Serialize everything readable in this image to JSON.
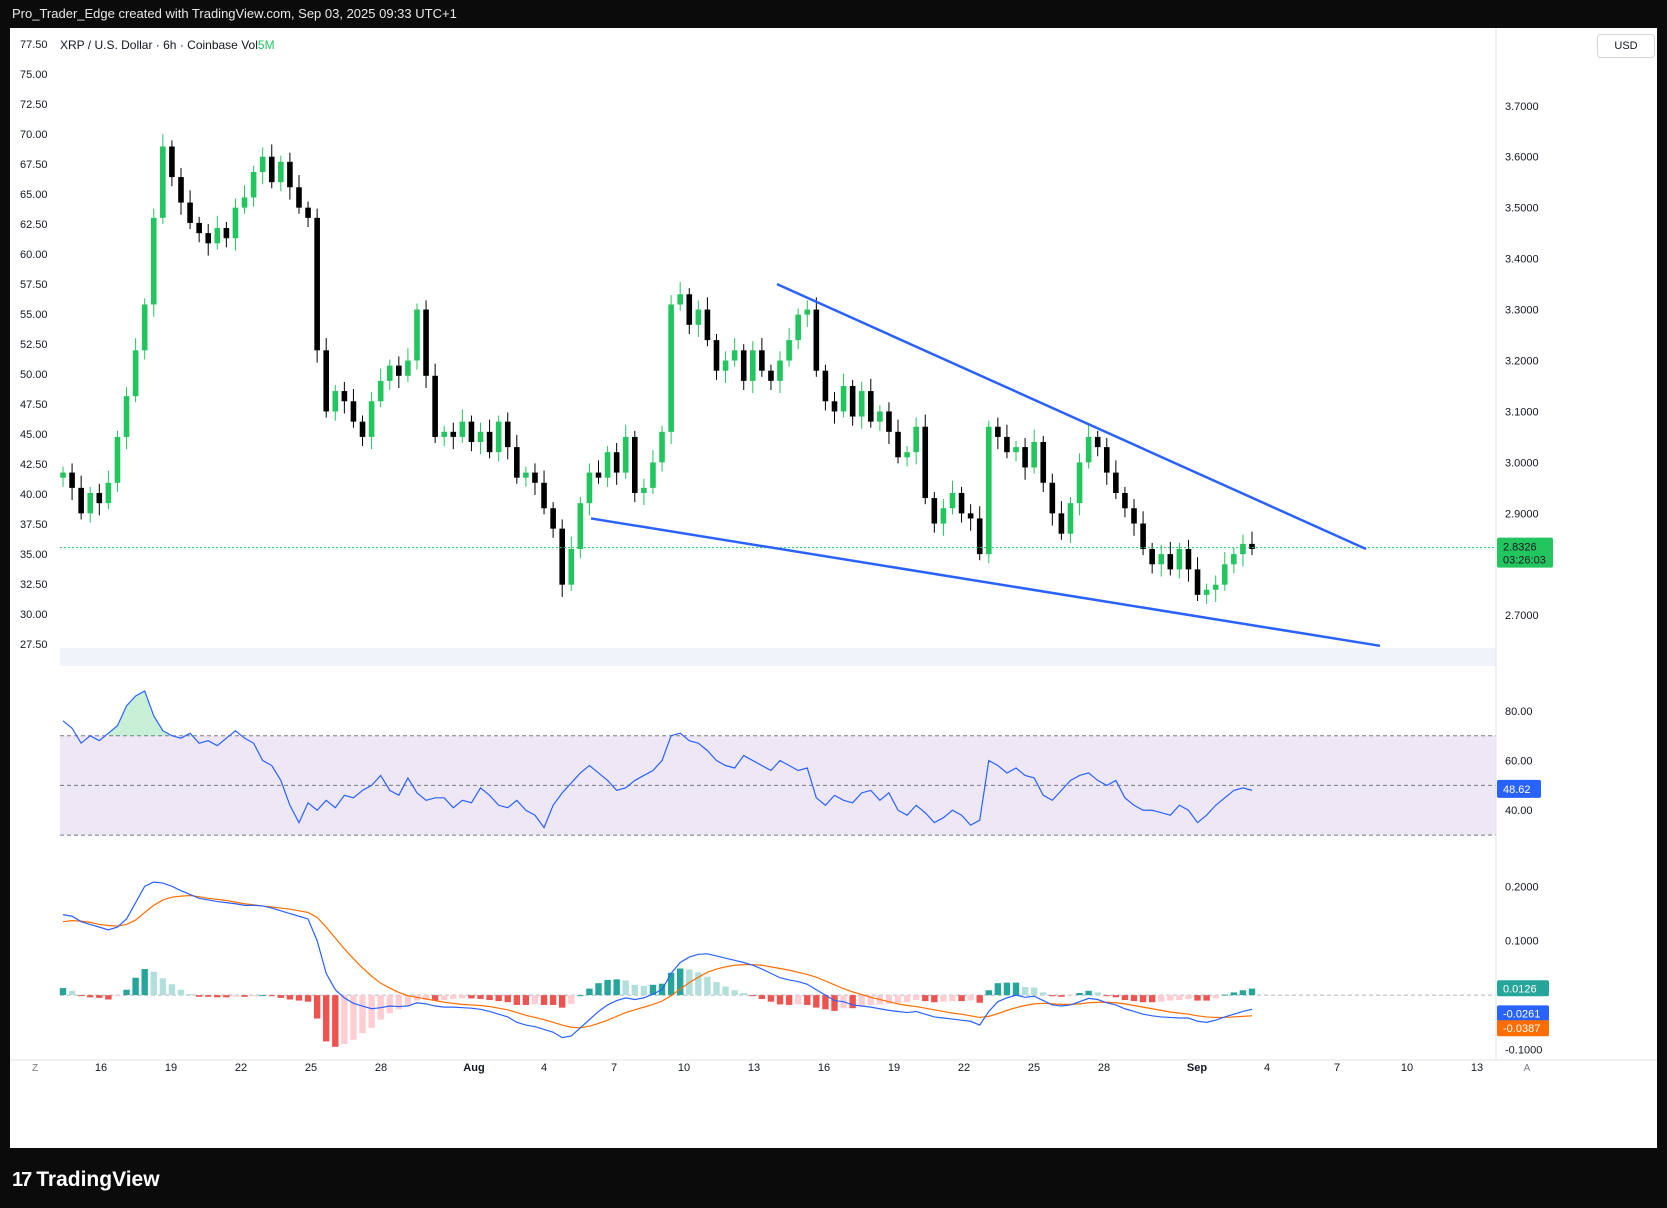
{
  "header": {
    "attribution": "Pro_Trader_Edge created with TradingView.com, Sep 03, 2025 09:33 UTC+1"
  },
  "legend": {
    "symbol": "XRP / U.S. Dollar · 6h · Coinbase",
    "vol_label": "Vol",
    "vol_value": "5M"
  },
  "currency_button": "USD",
  "footer": {
    "brand": "TradingView",
    "logo_glyph": "17"
  },
  "corner_labels": {
    "zoom": "Z",
    "auto": "A"
  },
  "colors": {
    "up": "#22c55e",
    "down": "#000000",
    "trendline": "#2962ff",
    "rsi": "#2962ff",
    "rsi_band": "#ede7f6",
    "macd": "#2962ff",
    "signal": "#ff6d00",
    "hist_pos": "#26a69a",
    "hist_neg": "#ef5350"
  },
  "chart_data": [
    {
      "type": "candlestick",
      "title": "XRP / U.S. Dollar · 6h · Coinbase",
      "right_axis_ticks": [
        "3.7000",
        "3.6000",
        "3.5000",
        "3.4000",
        "3.3000",
        "3.2000",
        "3.1000",
        "3.0000",
        "2.9000",
        "2.7000"
      ],
      "left_axis_ticks": [
        "77.50",
        "75.00",
        "72.50",
        "70.00",
        "67.50",
        "65.00",
        "62.50",
        "60.00",
        "57.50",
        "55.00",
        "52.50",
        "50.00",
        "47.50",
        "45.00",
        "42.50",
        "40.00",
        "37.50",
        "35.00",
        "32.50",
        "30.00",
        "27.50"
      ],
      "x_tick_labels": [
        "16",
        "19",
        "22",
        "25",
        "28",
        "Aug",
        "4",
        "7",
        "10",
        "13",
        "16",
        "19",
        "22",
        "25",
        "28",
        "Sep",
        "4",
        "7",
        "10",
        "13"
      ],
      "ylim": [
        2.62,
        3.78
      ],
      "closes": [
        2.98,
        2.95,
        2.9,
        2.94,
        2.92,
        2.96,
        3.05,
        3.13,
        3.22,
        3.31,
        3.48,
        3.62,
        3.56,
        3.51,
        3.47,
        3.45,
        3.43,
        3.46,
        3.44,
        3.5,
        3.52,
        3.57,
        3.6,
        3.55,
        3.59,
        3.54,
        3.5,
        3.48,
        3.22,
        3.1,
        3.14,
        3.12,
        3.08,
        3.05,
        3.12,
        3.16,
        3.19,
        3.17,
        3.2,
        3.3,
        3.17,
        3.05,
        3.06,
        3.05,
        3.08,
        3.04,
        3.06,
        3.02,
        3.08,
        3.03,
        2.97,
        2.98,
        2.96,
        2.91,
        2.87,
        2.76,
        2.83,
        2.92,
        2.98,
        2.97,
        3.02,
        2.98,
        3.05,
        2.94,
        2.95,
        3.0,
        3.06,
        3.31,
        3.33,
        3.27,
        3.3,
        3.24,
        3.18,
        3.2,
        3.22,
        3.16,
        3.22,
        3.18,
        3.16,
        3.2,
        3.24,
        3.29,
        3.3,
        3.18,
        3.12,
        3.1,
        3.15,
        3.09,
        3.14,
        3.08,
        3.1,
        3.06,
        3.01,
        3.02,
        3.07,
        2.93,
        2.88,
        2.91,
        2.94,
        2.9,
        2.89,
        2.82,
        3.07,
        3.05,
        3.02,
        3.03,
        2.99,
        3.04,
        2.96,
        2.9,
        2.86,
        2.92,
        3.0,
        3.05,
        3.03,
        2.98,
        2.94,
        2.91,
        2.88,
        2.83,
        2.8,
        2.82,
        2.79,
        2.83,
        2.79,
        2.74,
        2.75,
        2.76,
        2.8,
        2.82,
        2.84,
        2.83
      ],
      "current_price": "2.8326",
      "countdown": "03:26:03",
      "trendlines": [
        {
          "from": {
            "date": "Jul 14",
            "price": 3.35
          },
          "to": {
            "date": "Sep 9",
            "price": 2.83
          }
        },
        {
          "from": {
            "date": "Aug 5",
            "price": 2.89
          },
          "to": {
            "date": "Sep 10",
            "price": 2.64
          }
        }
      ]
    },
    {
      "type": "line",
      "title": "RSI",
      "ticks": [
        "80.00",
        "60.00",
        "40.00"
      ],
      "ylim": [
        24,
        90
      ],
      "band": [
        30,
        70
      ],
      "midline": 50,
      "current": "48.62",
      "values": [
        76,
        73,
        67,
        70,
        68,
        71,
        74,
        82,
        86,
        88,
        78,
        72,
        70,
        69,
        71,
        67,
        68,
        66,
        69,
        72,
        69,
        67,
        60,
        58,
        52,
        42,
        35,
        43,
        40,
        44,
        41,
        46,
        45,
        48,
        50,
        54,
        48,
        46,
        53,
        47,
        44,
        45,
        45,
        41,
        44,
        43,
        49,
        46,
        42,
        41,
        44,
        40,
        38,
        33,
        42,
        47,
        51,
        55,
        58,
        55,
        52,
        48,
        49,
        52,
        54,
        56,
        60,
        70,
        71,
        68,
        67,
        64,
        60,
        58,
        57,
        62,
        60,
        58,
        56,
        60,
        58,
        56,
        57,
        45,
        42,
        46,
        44,
        43,
        47,
        48,
        44,
        47,
        40,
        38,
        42,
        39,
        35,
        37,
        40,
        38,
        34,
        36,
        60,
        58,
        55,
        57,
        54,
        53,
        46,
        44,
        48,
        52,
        54,
        55,
        52,
        50,
        52,
        45,
        42,
        40,
        40,
        39,
        38,
        42,
        40,
        35,
        38,
        42,
        45,
        48,
        49,
        48
      ],
      "show_grid": false
    },
    {
      "type": "macd",
      "title": "MACD",
      "ticks": [
        "0.2000",
        "0.1000",
        "-0.1000"
      ],
      "ylim": [
        -0.11,
        0.23
      ],
      "current": {
        "histogram": "0.0126",
        "macd": "-0.0261",
        "signal": "-0.0387"
      },
      "macd_values": [
        0.148,
        0.145,
        0.135,
        0.13,
        0.125,
        0.12,
        0.125,
        0.14,
        0.17,
        0.2,
        0.208,
        0.206,
        0.2,
        0.192,
        0.185,
        0.178,
        0.175,
        0.172,
        0.17,
        0.168,
        0.165,
        0.165,
        0.164,
        0.16,
        0.155,
        0.15,
        0.145,
        0.14,
        0.1,
        0.04,
        0.01,
        -0.005,
        -0.015,
        -0.02,
        -0.025,
        -0.023,
        -0.02,
        -0.021,
        -0.02,
        -0.014,
        -0.016,
        -0.02,
        -0.022,
        -0.022,
        -0.023,
        -0.024,
        -0.026,
        -0.03,
        -0.035,
        -0.04,
        -0.05,
        -0.055,
        -0.058,
        -0.063,
        -0.068,
        -0.078,
        -0.075,
        -0.06,
        -0.045,
        -0.03,
        -0.018,
        -0.01,
        -0.005,
        -0.008,
        -0.005,
        0.002,
        0.01,
        0.04,
        0.06,
        0.07,
        0.075,
        0.076,
        0.072,
        0.068,
        0.064,
        0.06,
        0.055,
        0.048,
        0.04,
        0.032,
        0.028,
        0.025,
        0.02,
        0.01,
        0.0,
        -0.01,
        -0.012,
        -0.018,
        -0.02,
        -0.022,
        -0.025,
        -0.028,
        -0.03,
        -0.032,
        -0.03,
        -0.035,
        -0.04,
        -0.042,
        -0.044,
        -0.046,
        -0.048,
        -0.055,
        -0.03,
        -0.012,
        -0.005,
        0.0,
        -0.004,
        -0.002,
        -0.01,
        -0.018,
        -0.02,
        -0.018,
        -0.012,
        -0.006,
        -0.008,
        -0.014,
        -0.018,
        -0.025,
        -0.03,
        -0.035,
        -0.038,
        -0.04,
        -0.041,
        -0.042,
        -0.042,
        -0.048,
        -0.05,
        -0.046,
        -0.04,
        -0.035,
        -0.03,
        -0.026
      ],
      "signal_values": [
        0.135,
        0.137,
        0.136,
        0.134,
        0.13,
        0.128,
        0.127,
        0.13,
        0.138,
        0.152,
        0.165,
        0.175,
        0.18,
        0.182,
        0.183,
        0.181,
        0.178,
        0.176,
        0.174,
        0.171,
        0.168,
        0.166,
        0.164,
        0.162,
        0.16,
        0.158,
        0.155,
        0.152,
        0.143,
        0.125,
        0.105,
        0.085,
        0.067,
        0.05,
        0.035,
        0.022,
        0.013,
        0.005,
        -0.001,
        -0.004,
        -0.007,
        -0.01,
        -0.013,
        -0.015,
        -0.017,
        -0.018,
        -0.019,
        -0.021,
        -0.024,
        -0.027,
        -0.032,
        -0.037,
        -0.041,
        -0.045,
        -0.05,
        -0.055,
        -0.059,
        -0.06,
        -0.057,
        -0.052,
        -0.046,
        -0.039,
        -0.032,
        -0.027,
        -0.022,
        -0.017,
        -0.011,
        -0.001,
        0.011,
        0.023,
        0.033,
        0.042,
        0.048,
        0.052,
        0.055,
        0.056,
        0.056,
        0.055,
        0.052,
        0.049,
        0.046,
        0.042,
        0.038,
        0.033,
        0.026,
        0.019,
        0.012,
        0.006,
        0.001,
        -0.004,
        -0.008,
        -0.012,
        -0.016,
        -0.019,
        -0.021,
        -0.024,
        -0.027,
        -0.03,
        -0.033,
        -0.035,
        -0.038,
        -0.041,
        -0.039,
        -0.034,
        -0.028,
        -0.023,
        -0.019,
        -0.016,
        -0.015,
        -0.016,
        -0.017,
        -0.017,
        -0.016,
        -0.014,
        -0.013,
        -0.013,
        -0.014,
        -0.016,
        -0.019,
        -0.022,
        -0.025,
        -0.028,
        -0.031,
        -0.033,
        -0.035,
        -0.038,
        -0.04,
        -0.041,
        -0.041,
        -0.04,
        -0.039,
        -0.038
      ],
      "histogram_values": [
        0.013,
        0.008,
        -0.001,
        -0.004,
        -0.005,
        -0.008,
        -0.002,
        0.01,
        0.032,
        0.048,
        0.043,
        0.031,
        0.02,
        0.01,
        0.002,
        -0.003,
        -0.003,
        -0.004,
        -0.004,
        -0.003,
        -0.003,
        -0.001,
        0.0,
        -0.002,
        -0.005,
        -0.008,
        -0.01,
        -0.012,
        -0.043,
        -0.085,
        -0.095,
        -0.09,
        -0.082,
        -0.07,
        -0.06,
        -0.045,
        -0.033,
        -0.026,
        -0.019,
        -0.01,
        -0.009,
        -0.01,
        -0.009,
        -0.007,
        -0.006,
        -0.006,
        -0.007,
        -0.009,
        -0.011,
        -0.013,
        -0.018,
        -0.018,
        -0.017,
        -0.018,
        -0.018,
        -0.023,
        -0.016,
        0.0,
        0.012,
        0.022,
        0.028,
        0.029,
        0.027,
        0.019,
        0.017,
        0.019,
        0.021,
        0.041,
        0.049,
        0.047,
        0.042,
        0.034,
        0.024,
        0.016,
        0.009,
        0.004,
        -0.001,
        -0.007,
        -0.012,
        -0.017,
        -0.018,
        -0.017,
        -0.018,
        -0.023,
        -0.026,
        -0.029,
        -0.024,
        -0.024,
        -0.021,
        -0.018,
        -0.017,
        -0.016,
        -0.014,
        -0.013,
        -0.009,
        -0.011,
        -0.013,
        -0.012,
        -0.011,
        -0.011,
        -0.01,
        -0.014,
        0.009,
        0.022,
        0.023,
        0.023,
        0.015,
        0.014,
        0.005,
        -0.002,
        -0.003,
        -0.001,
        0.004,
        0.008,
        0.005,
        -0.001,
        -0.004,
        -0.009,
        -0.011,
        -0.013,
        -0.013,
        -0.012,
        -0.01,
        -0.009,
        -0.007,
        -0.01,
        -0.01,
        -0.006,
        0.001,
        0.005,
        0.009,
        0.012
      ]
    }
  ]
}
